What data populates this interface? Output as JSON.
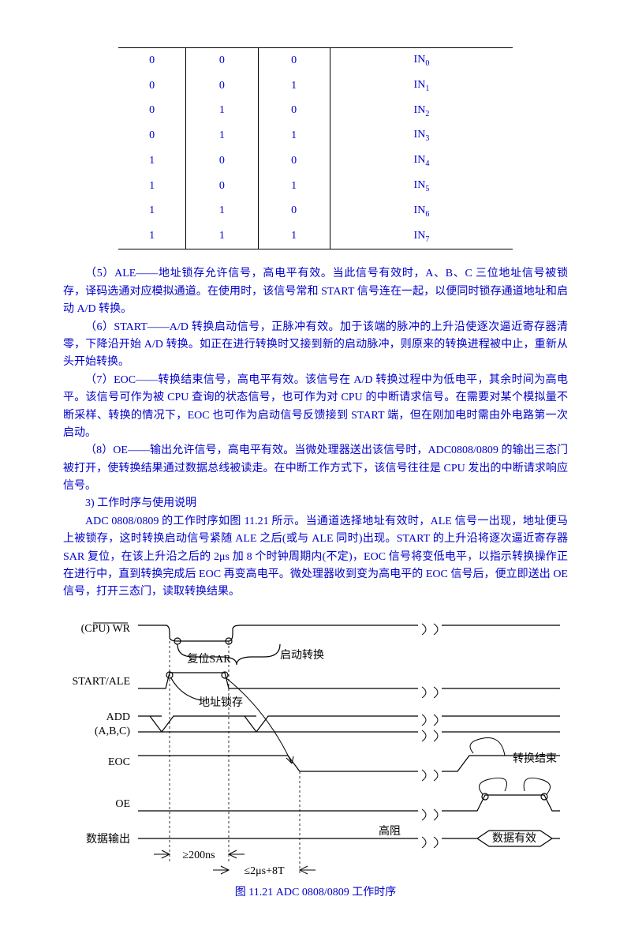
{
  "table": {
    "rows": [
      [
        "0",
        "0",
        "0",
        "IN",
        "0"
      ],
      [
        "0",
        "0",
        "1",
        "IN",
        "1"
      ],
      [
        "0",
        "1",
        "0",
        "IN",
        "2"
      ],
      [
        "0",
        "1",
        "1",
        "IN",
        "3"
      ],
      [
        "1",
        "0",
        "0",
        "IN",
        "4"
      ],
      [
        "1",
        "0",
        "1",
        "IN",
        "5"
      ],
      [
        "1",
        "1",
        "0",
        "IN",
        "6"
      ],
      [
        "1",
        "1",
        "1",
        "IN",
        "7"
      ]
    ]
  },
  "paragraphs": {
    "p5": "（5）ALE——地址锁存允许信号，高电平有效。当此信号有效时，A、B、C 三位地址信号被锁存，译码选通对应模拟通道。在使用时，该信号常和 START 信号连在一起，以便同时锁存通道地址和启动 A/D 转换。",
    "p6": "（6）START——A/D 转换启动信号，正脉冲有效。加于该端的脉冲的上升沿使逐次逼近寄存器清零，下降沿开始 A/D 转换。如正在进行转换时又接到新的启动脉冲，则原来的转换进程被中止，重新从头开始转换。",
    "p7": "（7）EOC——转换结束信号，高电平有效。该信号在 A/D 转换过程中为低电平，其余时间为高电平。该信号可作为被 CPU 查询的状态信号，也可作为对 CPU 的中断请求信号。在需要对某个模拟量不断采样、转换的情况下，EOC 也可作为启动信号反馈接到 START 端，但在刚加电时需由外电路第一次启动。",
    "p8": "（8）OE——输出允许信号，高电平有效。当微处理器送出该信号时，ADC0808/0809 的输出三态门被打开，使转换结果通过数据总线被读走。在中断工作方式下，该信号往往是 CPU 发出的中断请求响应信号。",
    "p9h": "3)  工作时序与使用说明",
    "p9": "ADC 0808/0809 的工作时序如图 11.21 所示。当通道选择地址有效时，ALE 信号一出现，地址便马上被锁存，这时转换启动信号紧随 ALE 之后(或与 ALE 同时)出现。START 的上升沿将逐次逼近寄存器 SAR 复位，在该上升沿之后的 2μs 加 8 个时钟周期内(不定)，EOC 信号将变低电平，以指示转换操作正在进行中，直到转换完成后 EOC 再变高电平。微处理器收到变为高电平的 EOC 信号后，便立即送出 OE 信号，打开三态门，读取转换结果。"
  },
  "diagram": {
    "labels": {
      "wr": "(CPU)  WR",
      "start_ale": "START/ALE",
      "add": "ADD",
      "abc": "(A,B,C)",
      "eoc": "EOC",
      "oe": "OE",
      "data_out": "数据输出",
      "reset_sar": "复位SAR",
      "start_conv": "启动转换",
      "addr_latch": "地址锁存",
      "conv_end": "转换结束",
      "hiz": "高阻",
      "data_valid": "数据有效",
      "t200ns": "≥200ns",
      "t2us8t": "≤2μs+8T"
    },
    "caption": "图 11.21   ADC 0808/0809 工作时序",
    "colors": {
      "line": "#000000",
      "text": "#000000"
    }
  }
}
